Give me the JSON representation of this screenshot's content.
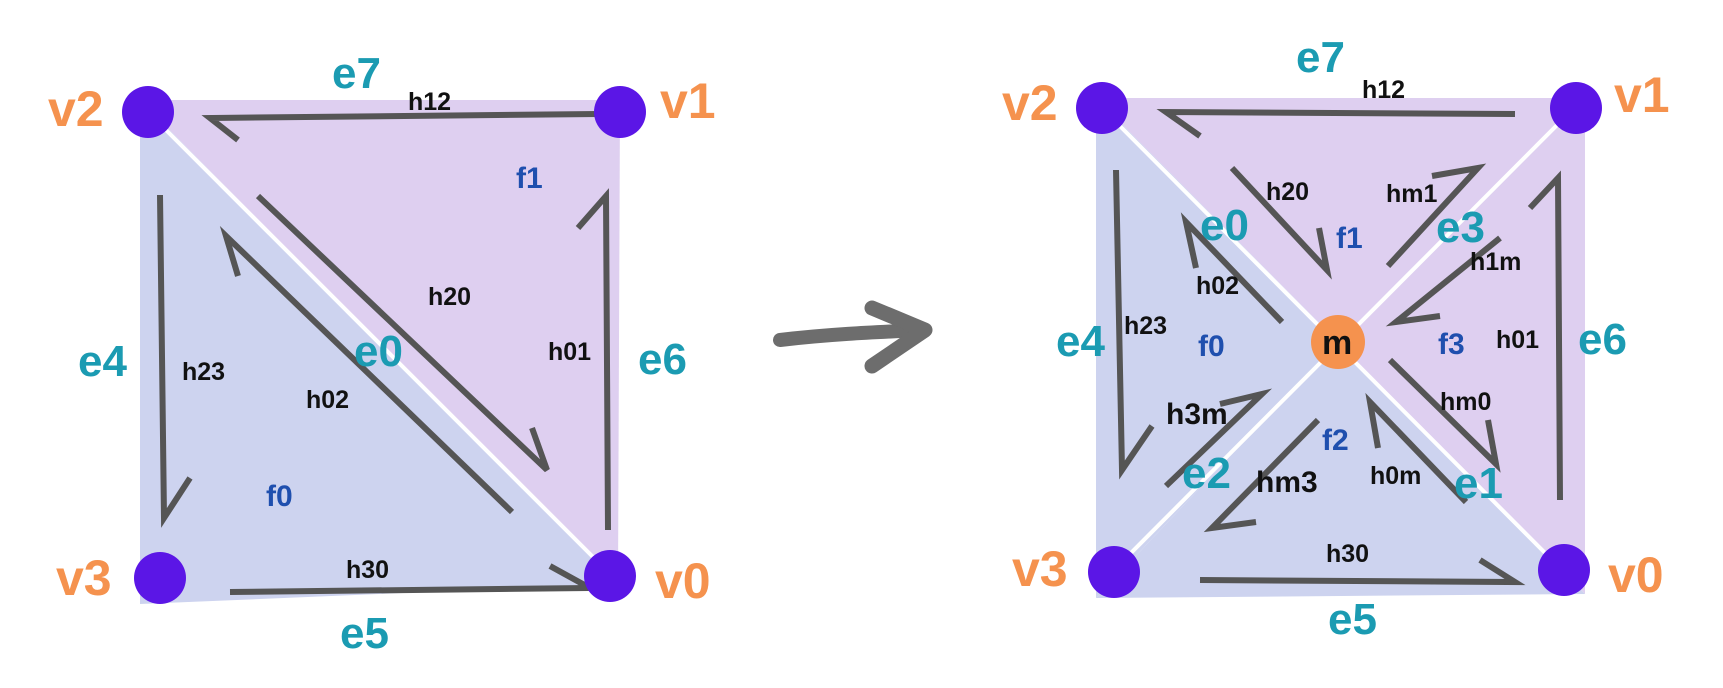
{
  "left": {
    "vertices": [
      "v0",
      "v1",
      "v2",
      "v3"
    ],
    "edges": [
      "e0",
      "e4",
      "e5",
      "e6",
      "e7"
    ],
    "faces": [
      "f0",
      "f1"
    ],
    "halfedges": [
      "h01",
      "h12",
      "h20",
      "h02",
      "h23",
      "h30"
    ]
  },
  "right": {
    "vertices": [
      "v0",
      "v1",
      "v2",
      "v3"
    ],
    "center": "m",
    "edges": [
      "e0",
      "e1",
      "e2",
      "e3",
      "e4",
      "e5",
      "e6",
      "e7"
    ],
    "faces": [
      "f0",
      "f1",
      "f2",
      "f3"
    ],
    "halfedges": [
      "h12",
      "h20",
      "hm1",
      "h02",
      "h23",
      "h1m",
      "h01",
      "h3m",
      "hm0",
      "hm3",
      "h0m",
      "h30"
    ]
  },
  "colors": {
    "vertex": "#5b16e6",
    "center": "#f5924e",
    "face_purple": "#decff0",
    "face_blue": "#cdd3ef",
    "vertex_label": "#f5924e",
    "edge_label": "#1b9bb2",
    "face_label": "#1f4fae",
    "halfedge": "#555555"
  },
  "icons": {
    "transform_arrow": "arrow-right-icon"
  }
}
